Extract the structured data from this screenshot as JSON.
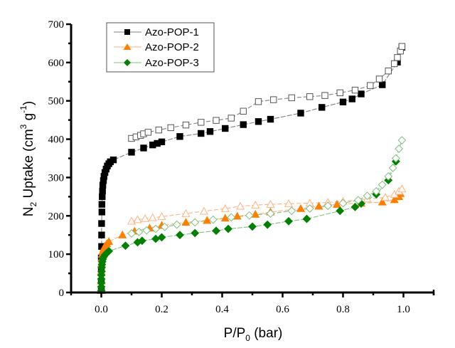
{
  "chart_data": {
    "type": "scatter",
    "title": "",
    "xlabel": "P/P",
    "xlabel_sub": "0",
    "xlabel_suffix": " (bar)",
    "ylabel": "N",
    "ylabel_sub": "2",
    "ylabel_mid": " Uptake (cm",
    "ylabel_sup1": "3",
    "ylabel_mid2": " g",
    "ylabel_sup2": "-1",
    "ylabel_end": ")",
    "xlim": [
      -0.1,
      1.1
    ],
    "ylim": [
      0,
      700
    ],
    "xticks": [
      "0.0",
      "0.2",
      "0.4",
      "0.6",
      "0.8",
      "1.0"
    ],
    "xtick_values": [
      0,
      0.2,
      0.4,
      0.6,
      0.8,
      1.0
    ],
    "yticks": [
      "0",
      "100",
      "200",
      "300",
      "400",
      "500",
      "600",
      "700"
    ],
    "ytick_values": [
      0,
      100,
      200,
      300,
      400,
      500,
      600,
      700
    ],
    "grid": false,
    "legend_position": "top-left",
    "series": [
      {
        "name": "Azo-POP-1",
        "color": "#000000",
        "line_color": "#808080",
        "marker": "square",
        "adsorption": [
          [
            0.0,
            5
          ],
          [
            0.0,
            30
          ],
          [
            0.0,
            60
          ],
          [
            0.0,
            90
          ],
          [
            0.001,
            120
          ],
          [
            0.001,
            150
          ],
          [
            0.001,
            180
          ],
          [
            0.002,
            210
          ],
          [
            0.002,
            230
          ],
          [
            0.003,
            250
          ],
          [
            0.004,
            265
          ],
          [
            0.005,
            280
          ],
          [
            0.007,
            292
          ],
          [
            0.009,
            303
          ],
          [
            0.012,
            313
          ],
          [
            0.016,
            322
          ],
          [
            0.02,
            330
          ],
          [
            0.025,
            336
          ],
          [
            0.03,
            341
          ],
          [
            0.04,
            346
          ],
          [
            0.1,
            366
          ],
          [
            0.14,
            377
          ],
          [
            0.17,
            385
          ],
          [
            0.185,
            389
          ],
          [
            0.2,
            393
          ],
          [
            0.26,
            407
          ],
          [
            0.33,
            415
          ],
          [
            0.36,
            420
          ],
          [
            0.41,
            428
          ],
          [
            0.47,
            438
          ],
          [
            0.52,
            446
          ],
          [
            0.56,
            452
          ],
          [
            0.66,
            468
          ],
          [
            0.73,
            483
          ],
          [
            0.8,
            497
          ],
          [
            0.83,
            505
          ],
          [
            0.86,
            518
          ],
          [
            0.93,
            542
          ],
          [
            0.98,
            601
          ],
          [
            0.995,
            640
          ]
        ],
        "desorption": [
          [
            0.1,
            402
          ],
          [
            0.115,
            406
          ],
          [
            0.13,
            410
          ],
          [
            0.14,
            414
          ],
          [
            0.155,
            418
          ],
          [
            0.19,
            424
          ],
          [
            0.23,
            430
          ],
          [
            0.28,
            437
          ],
          [
            0.33,
            444
          ],
          [
            0.38,
            449
          ],
          [
            0.43,
            455
          ],
          [
            0.47,
            473
          ],
          [
            0.52,
            498
          ],
          [
            0.57,
            503
          ],
          [
            0.63,
            508
          ],
          [
            0.69,
            511
          ],
          [
            0.74,
            514
          ],
          [
            0.79,
            521
          ],
          [
            0.84,
            528
          ],
          [
            0.89,
            540
          ],
          [
            0.92,
            557
          ],
          [
            0.95,
            578
          ],
          [
            0.97,
            597
          ],
          [
            0.98,
            613
          ],
          [
            0.99,
            630
          ],
          [
            0.995,
            642
          ]
        ]
      },
      {
        "name": "Azo-POP-2",
        "color": "#FF7F00",
        "line_color": "#FFB27F",
        "marker": "triangle",
        "adsorption": [
          [
            0.0,
            5
          ],
          [
            0.0,
            30
          ],
          [
            0.0,
            55
          ],
          [
            0.001,
            75
          ],
          [
            0.002,
            90
          ],
          [
            0.003,
            100
          ],
          [
            0.005,
            108
          ],
          [
            0.008,
            115
          ],
          [
            0.012,
            121
          ],
          [
            0.018,
            127
          ],
          [
            0.025,
            133
          ],
          [
            0.07,
            150
          ],
          [
            0.11,
            160
          ],
          [
            0.16,
            168
          ],
          [
            0.2,
            175
          ],
          [
            0.28,
            183
          ],
          [
            0.35,
            188
          ],
          [
            0.41,
            194
          ],
          [
            0.45,
            199
          ],
          [
            0.51,
            204
          ],
          [
            0.56,
            210
          ],
          [
            0.66,
            219
          ],
          [
            0.72,
            225
          ],
          [
            0.78,
            230
          ],
          [
            0.86,
            233
          ],
          [
            0.93,
            236
          ],
          [
            0.97,
            242
          ],
          [
            0.985,
            250
          ],
          [
            0.99,
            258
          ]
        ],
        "desorption": [
          [
            0.1,
            186
          ],
          [
            0.12,
            190
          ],
          [
            0.145,
            193
          ],
          [
            0.17,
            195
          ],
          [
            0.2,
            198
          ],
          [
            0.28,
            206
          ],
          [
            0.34,
            212
          ],
          [
            0.41,
            219
          ],
          [
            0.46,
            225
          ],
          [
            0.51,
            228
          ],
          [
            0.56,
            230
          ],
          [
            0.62,
            232
          ],
          [
            0.69,
            233
          ],
          [
            0.75,
            235
          ],
          [
            0.8,
            238
          ],
          [
            0.88,
            244
          ],
          [
            0.94,
            248
          ],
          [
            0.97,
            256
          ],
          [
            0.985,
            264
          ],
          [
            0.995,
            270
          ]
        ]
      },
      {
        "name": "Azo-POP-3",
        "color": "#007F00",
        "line_color": "#7FBF7F",
        "marker": "diamond",
        "adsorption": [
          [
            0.0,
            5
          ],
          [
            0.0,
            15
          ],
          [
            0.0,
            25
          ],
          [
            0.0,
            35
          ],
          [
            0.0,
            45
          ],
          [
            0.001,
            55
          ],
          [
            0.001,
            65
          ],
          [
            0.002,
            73
          ],
          [
            0.003,
            80
          ],
          [
            0.005,
            87
          ],
          [
            0.008,
            93
          ],
          [
            0.012,
            98
          ],
          [
            0.018,
            103
          ],
          [
            0.025,
            108
          ],
          [
            0.08,
            122
          ],
          [
            0.12,
            131
          ],
          [
            0.135,
            135
          ],
          [
            0.18,
            140
          ],
          [
            0.2,
            144
          ],
          [
            0.26,
            150
          ],
          [
            0.31,
            155
          ],
          [
            0.38,
            161
          ],
          [
            0.42,
            166
          ],
          [
            0.5,
            172
          ],
          [
            0.55,
            177
          ],
          [
            0.62,
            186
          ],
          [
            0.68,
            192
          ],
          [
            0.79,
            213
          ],
          [
            0.84,
            223
          ],
          [
            0.86,
            232
          ],
          [
            0.91,
            256
          ],
          [
            0.95,
            293
          ],
          [
            0.975,
            342
          ]
        ],
        "desorption": [
          [
            0.1,
            154
          ],
          [
            0.125,
            158
          ],
          [
            0.15,
            162
          ],
          [
            0.18,
            166
          ],
          [
            0.21,
            171
          ],
          [
            0.25,
            177
          ],
          [
            0.31,
            183
          ],
          [
            0.37,
            190
          ],
          [
            0.43,
            196
          ],
          [
            0.49,
            201
          ],
          [
            0.56,
            206
          ],
          [
            0.63,
            213
          ],
          [
            0.69,
            219
          ],
          [
            0.75,
            226
          ],
          [
            0.8,
            233
          ],
          [
            0.85,
            241
          ],
          [
            0.88,
            252
          ],
          [
            0.91,
            264
          ],
          [
            0.93,
            281
          ],
          [
            0.95,
            303
          ],
          [
            0.965,
            325
          ],
          [
            0.975,
            350
          ],
          [
            0.985,
            375
          ],
          [
            0.995,
            397
          ]
        ]
      }
    ]
  }
}
